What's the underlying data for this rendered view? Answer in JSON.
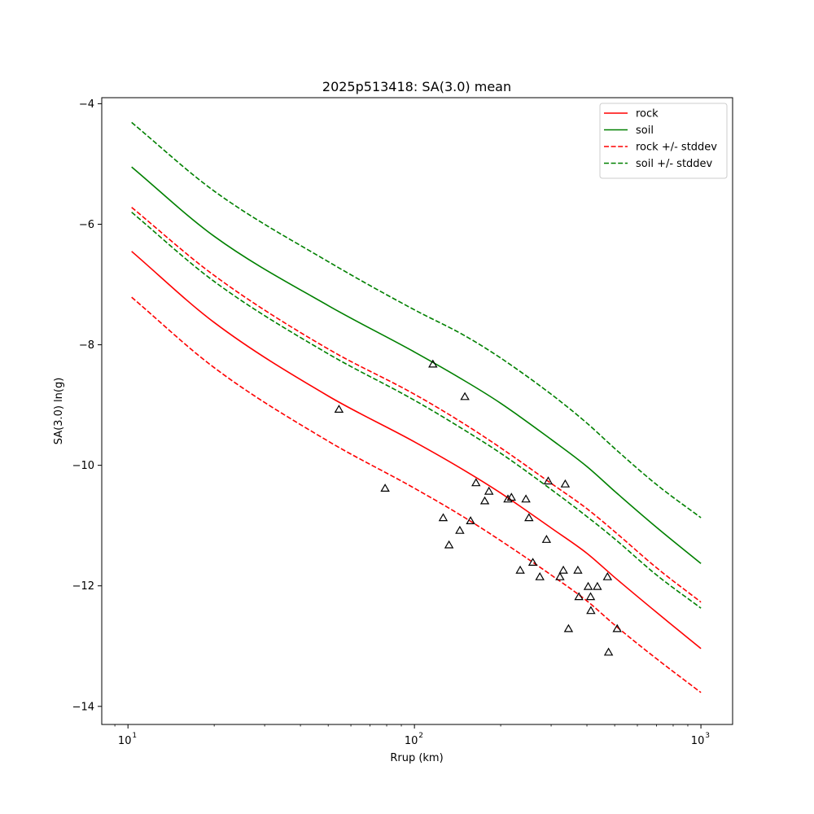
{
  "chart_data": {
    "type": "line",
    "title": "2025p513418: SA(3.0) mean",
    "xlabel": "Rrup (km)",
    "ylabel": "SA(3.0) ln(g)",
    "xscale": "log",
    "xlim": [
      8.1,
      1290
    ],
    "ylim": [
      -14.3,
      -3.9
    ],
    "x_ticks": [
      {
        "value": 10,
        "base": "10",
        "exp": "1"
      },
      {
        "value": 100,
        "base": "10",
        "exp": "2"
      },
      {
        "value": 1000,
        "base": "10",
        "exp": "3"
      }
    ],
    "y_ticks": [
      {
        "value": -4,
        "label": "−4"
      },
      {
        "value": -6,
        "label": "−6"
      },
      {
        "value": -8,
        "label": "−8"
      },
      {
        "value": -10,
        "label": "−10"
      },
      {
        "value": -12,
        "label": "−12"
      },
      {
        "value": -14,
        "label": "−14"
      }
    ],
    "grid": false,
    "legend": "top-right",
    "series": [
      {
        "name": "rock",
        "color": "#ff0000",
        "dash": "solid",
        "x": [
          10.3,
          20,
          50,
          100,
          150,
          200,
          300,
          400,
          500,
          700,
          1000
        ],
        "y": [
          -6.45,
          -7.63,
          -8.85,
          -9.61,
          -10.09,
          -10.46,
          -11.04,
          -11.46,
          -11.86,
          -12.44,
          -13.04
        ]
      },
      {
        "name": "soil",
        "color": "#008000",
        "dash": "solid",
        "x": [
          10.3,
          20,
          50,
          100,
          150,
          200,
          300,
          400,
          500,
          700,
          1000
        ],
        "y": [
          -5.05,
          -6.2,
          -7.35,
          -8.12,
          -8.6,
          -8.97,
          -9.57,
          -10.02,
          -10.43,
          -11.03,
          -11.63
        ]
      },
      {
        "name": "rock +/- stddev",
        "color": "#ff0000",
        "dash": "dashed",
        "x": [
          10.3,
          20,
          50,
          100,
          150,
          200,
          300,
          400,
          500,
          700,
          1000
        ],
        "y": [
          -5.72,
          -6.85,
          -8.07,
          -8.82,
          -9.32,
          -9.71,
          -10.3,
          -10.72,
          -11.1,
          -11.7,
          -12.27
        ]
      },
      {
        "name": "",
        "color": "#ff0000",
        "dash": "dashed",
        "x": [
          10.3,
          20,
          50,
          100,
          150,
          200,
          300,
          400,
          500,
          700,
          1000
        ],
        "y": [
          -7.21,
          -8.38,
          -9.6,
          -10.38,
          -10.87,
          -11.25,
          -11.82,
          -12.25,
          -12.65,
          -13.21,
          -13.77
        ]
      },
      {
        "name": "soil +/- stddev",
        "color": "#008000",
        "dash": "dashed",
        "x": [
          10.3,
          20,
          50,
          100,
          150,
          200,
          300,
          400,
          500,
          700,
          1000
        ],
        "y": [
          -4.31,
          -5.45,
          -6.62,
          -7.42,
          -7.85,
          -8.22,
          -8.82,
          -9.3,
          -9.72,
          -10.32,
          -10.87
        ]
      },
      {
        "name": "",
        "color": "#008000",
        "dash": "dashed",
        "x": [
          10.3,
          20,
          50,
          100,
          150,
          200,
          300,
          400,
          500,
          700,
          1000
        ],
        "y": [
          -5.8,
          -6.95,
          -8.15,
          -8.92,
          -9.42,
          -9.8,
          -10.4,
          -10.85,
          -11.22,
          -11.82,
          -12.37
        ]
      }
    ],
    "observations": {
      "marker": "triangle",
      "color": "#000000",
      "points": [
        {
          "x": 54.5,
          "y": -9.08
        },
        {
          "x": 79,
          "y": -10.39
        },
        {
          "x": 116,
          "y": -8.33
        },
        {
          "x": 126,
          "y": -10.88
        },
        {
          "x": 132,
          "y": -11.33
        },
        {
          "x": 144,
          "y": -11.09
        },
        {
          "x": 150,
          "y": -8.87
        },
        {
          "x": 157,
          "y": -10.93
        },
        {
          "x": 164,
          "y": -10.3
        },
        {
          "x": 176,
          "y": -10.6
        },
        {
          "x": 182,
          "y": -10.44
        },
        {
          "x": 212,
          "y": -10.57
        },
        {
          "x": 218,
          "y": -10.54
        },
        {
          "x": 234,
          "y": -11.75
        },
        {
          "x": 245,
          "y": -10.57
        },
        {
          "x": 251,
          "y": -10.88
        },
        {
          "x": 259,
          "y": -11.62
        },
        {
          "x": 274,
          "y": -11.86
        },
        {
          "x": 289,
          "y": -11.24
        },
        {
          "x": 293,
          "y": -10.27
        },
        {
          "x": 322,
          "y": -11.86
        },
        {
          "x": 331,
          "y": -11.75
        },
        {
          "x": 336,
          "y": -10.32
        },
        {
          "x": 345,
          "y": -12.72
        },
        {
          "x": 372,
          "y": -11.75
        },
        {
          "x": 375,
          "y": -12.19
        },
        {
          "x": 404,
          "y": -12.02
        },
        {
          "x": 412,
          "y": -12.19
        },
        {
          "x": 413,
          "y": -12.42
        },
        {
          "x": 435,
          "y": -12.02
        },
        {
          "x": 472,
          "y": -11.86
        },
        {
          "x": 476,
          "y": -13.11
        },
        {
          "x": 510,
          "y": -12.72
        }
      ]
    }
  }
}
